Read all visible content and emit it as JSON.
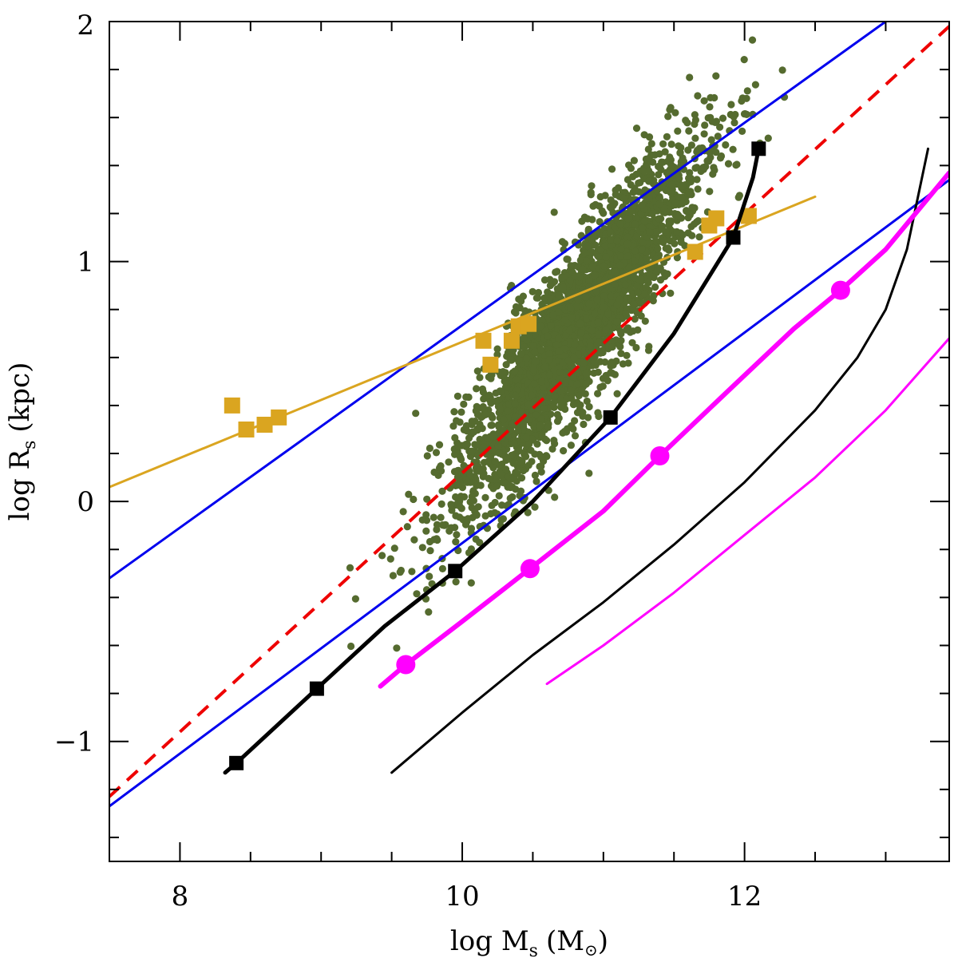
{
  "chart_data": {
    "type": "scatter",
    "title": "",
    "xlabel": {
      "prefix": "log M",
      "sub": "s",
      "units_open": "(M",
      "sun_symbol": "⊙",
      "units_close": ")"
    },
    "ylabel": {
      "prefix": "log R",
      "sub": "s",
      "units": "(kpc)"
    },
    "xlim": [
      7.5,
      13.45
    ],
    "ylim": [
      -1.5,
      2.0
    ],
    "x_ticks": [
      8,
      10,
      12
    ],
    "x_tick_labels": [
      "8",
      "10",
      "12"
    ],
    "y_ticks": [
      -1,
      0,
      1,
      2
    ],
    "y_tick_labels": [
      "−1",
      "0",
      "1",
      "2"
    ],
    "x_minor_step": 0.5,
    "y_minor_step": 0.2,
    "colors": {
      "scatter": "#556b2f",
      "gold": "#daa520",
      "blue": "#0000ee",
      "red": "#ee0000",
      "black": "#000000",
      "magenta": "#ff00ff"
    },
    "scatter_cloud": {
      "name": "green-galaxy-cloud",
      "count": 3200,
      "center": [
        10.8,
        0.72
      ],
      "major_slope": 0.85,
      "major_sigma": 0.55,
      "minor_sigma": 0.13
    },
    "series": [
      {
        "name": "blue-upper-line",
        "style": "line",
        "color": "blue",
        "width": 3,
        "x": [
          7.5,
          13.0
        ],
        "y": [
          -0.32,
          2.0
        ]
      },
      {
        "name": "blue-lower-line",
        "style": "line",
        "color": "blue",
        "width": 3,
        "x": [
          7.5,
          13.45
        ],
        "y": [
          -1.27,
          1.34
        ]
      },
      {
        "name": "red-dashed-line",
        "style": "dashed",
        "color": "red",
        "width": 4,
        "x": [
          7.5,
          13.45
        ],
        "y": [
          -1.23,
          1.98
        ]
      },
      {
        "name": "gold-fit-line",
        "style": "line",
        "color": "gold",
        "width": 3,
        "x": [
          7.5,
          12.5
        ],
        "y": [
          0.06,
          1.27
        ]
      },
      {
        "name": "gold-squares",
        "style": "square",
        "color": "gold",
        "size": 20,
        "x": [
          8.37,
          8.47,
          8.6,
          8.7,
          10.15,
          10.2,
          10.35,
          10.4,
          10.47,
          11.65,
          11.75,
          11.8,
          12.03
        ],
        "y": [
          0.4,
          0.3,
          0.32,
          0.35,
          0.67,
          0.57,
          0.67,
          0.73,
          0.74,
          1.04,
          1.15,
          1.18,
          1.19
        ]
      },
      {
        "name": "black-thick-curve",
        "style": "line",
        "color": "black",
        "width": 5,
        "x": [
          8.32,
          8.4,
          8.97,
          9.45,
          9.95,
          10.5,
          11.05,
          11.5,
          11.92,
          12.06,
          12.1
        ],
        "y": [
          -1.13,
          -1.09,
          -0.78,
          -0.52,
          -0.29,
          0.0,
          0.35,
          0.7,
          1.1,
          1.35,
          1.47
        ]
      },
      {
        "name": "black-curve-markers",
        "style": "square",
        "color": "black",
        "size": 18,
        "x": [
          8.4,
          8.97,
          9.95,
          11.05,
          11.92,
          12.1
        ],
        "y": [
          -1.09,
          -0.78,
          -0.29,
          0.35,
          1.1,
          1.47
        ]
      },
      {
        "name": "black-thin-curve",
        "style": "line",
        "color": "black",
        "width": 3,
        "x": [
          9.5,
          10.0,
          10.5,
          11.0,
          11.5,
          12.0,
          12.5,
          12.8,
          13.0,
          13.15,
          13.3
        ],
        "y": [
          -1.13,
          -0.88,
          -0.64,
          -0.42,
          -0.18,
          0.08,
          0.38,
          0.6,
          0.8,
          1.05,
          1.47
        ]
      },
      {
        "name": "magenta-thick-line",
        "style": "line",
        "color": "magenta",
        "width": 6,
        "x": [
          9.42,
          9.6,
          10.0,
          10.48,
          11.0,
          11.4,
          11.9,
          12.35,
          12.68,
          13.0,
          13.45
        ],
        "y": [
          -0.77,
          -0.68,
          -0.5,
          -0.28,
          -0.04,
          0.19,
          0.47,
          0.72,
          0.88,
          1.05,
          1.37
        ]
      },
      {
        "name": "magenta-markers",
        "style": "circle",
        "color": "magenta",
        "size": 12,
        "x": [
          9.6,
          10.48,
          11.4,
          12.68
        ],
        "y": [
          -0.68,
          -0.28,
          0.19,
          0.88
        ]
      },
      {
        "name": "magenta-thin-curve",
        "style": "line",
        "color": "magenta",
        "width": 3,
        "x": [
          10.6,
          11.0,
          11.5,
          12.0,
          12.5,
          13.0,
          13.45
        ],
        "y": [
          -0.76,
          -0.6,
          -0.38,
          -0.14,
          0.1,
          0.38,
          0.68
        ]
      }
    ]
  }
}
